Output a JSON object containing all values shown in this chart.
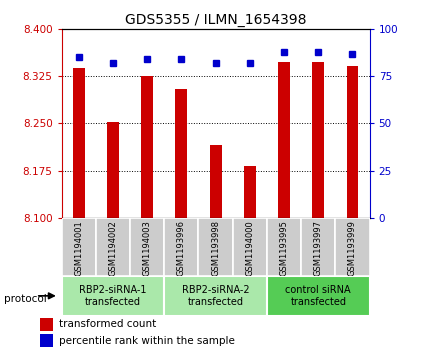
{
  "title": "GDS5355 / ILMN_1654398",
  "samples": [
    "GSM1194001",
    "GSM1194002",
    "GSM1194003",
    "GSM1193996",
    "GSM1193998",
    "GSM1194000",
    "GSM1193995",
    "GSM1193997",
    "GSM1193999"
  ],
  "red_values": [
    8.338,
    8.252,
    8.326,
    8.305,
    8.215,
    8.183,
    8.348,
    8.348,
    8.342
  ],
  "blue_values": [
    85,
    82,
    84,
    84,
    82,
    82,
    88,
    88,
    87
  ],
  "ylim_left": [
    8.1,
    8.4
  ],
  "ylim_right": [
    0,
    100
  ],
  "yticks_left": [
    8.1,
    8.175,
    8.25,
    8.325,
    8.4
  ],
  "yticks_right": [
    0,
    25,
    50,
    75,
    100
  ],
  "groups": [
    {
      "label": "RBP2-siRNA-1\ntransfected",
      "indices": [
        0,
        1,
        2
      ],
      "color": "#aae8aa"
    },
    {
      "label": "RBP2-siRNA-2\ntransfected",
      "indices": [
        3,
        4,
        5
      ],
      "color": "#aae8aa"
    },
    {
      "label": "control siRNA\ntransfected",
      "indices": [
        6,
        7,
        8
      ],
      "color": "#55cc55"
    }
  ],
  "bar_color": "#cc0000",
  "dot_color": "#0000cc",
  "label_area_color": "#cccccc",
  "protocol_label": "protocol",
  "legend_red": "transformed count",
  "legend_blue": "percentile rank within the sample"
}
